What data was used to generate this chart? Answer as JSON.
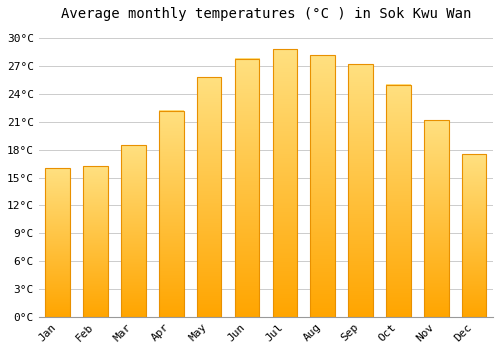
{
  "title": "Average monthly temperatures (°C ) in Sok Kwu Wan",
  "months": [
    "Jan",
    "Feb",
    "Mar",
    "Apr",
    "May",
    "Jun",
    "Jul",
    "Aug",
    "Sep",
    "Oct",
    "Nov",
    "Dec"
  ],
  "values": [
    16.0,
    16.2,
    18.5,
    22.2,
    25.8,
    27.8,
    28.8,
    28.2,
    27.2,
    25.0,
    21.2,
    17.5
  ],
  "ylim": [
    0,
    31
  ],
  "yticks": [
    0,
    3,
    6,
    9,
    12,
    15,
    18,
    21,
    24,
    27,
    30
  ],
  "ytick_labels": [
    "0°C",
    "3°C",
    "6°C",
    "9°C",
    "12°C",
    "15°C",
    "18°C",
    "21°C",
    "24°C",
    "27°C",
    "30°C"
  ],
  "title_fontsize": 10,
  "tick_fontsize": 8,
  "background_color": "#FFFFFF",
  "grid_color": "#CCCCCC",
  "bar_color_bottom": "#FFA500",
  "bar_color_top": "#FFE080",
  "bar_edge_color": "#E89000",
  "bar_width": 0.65
}
